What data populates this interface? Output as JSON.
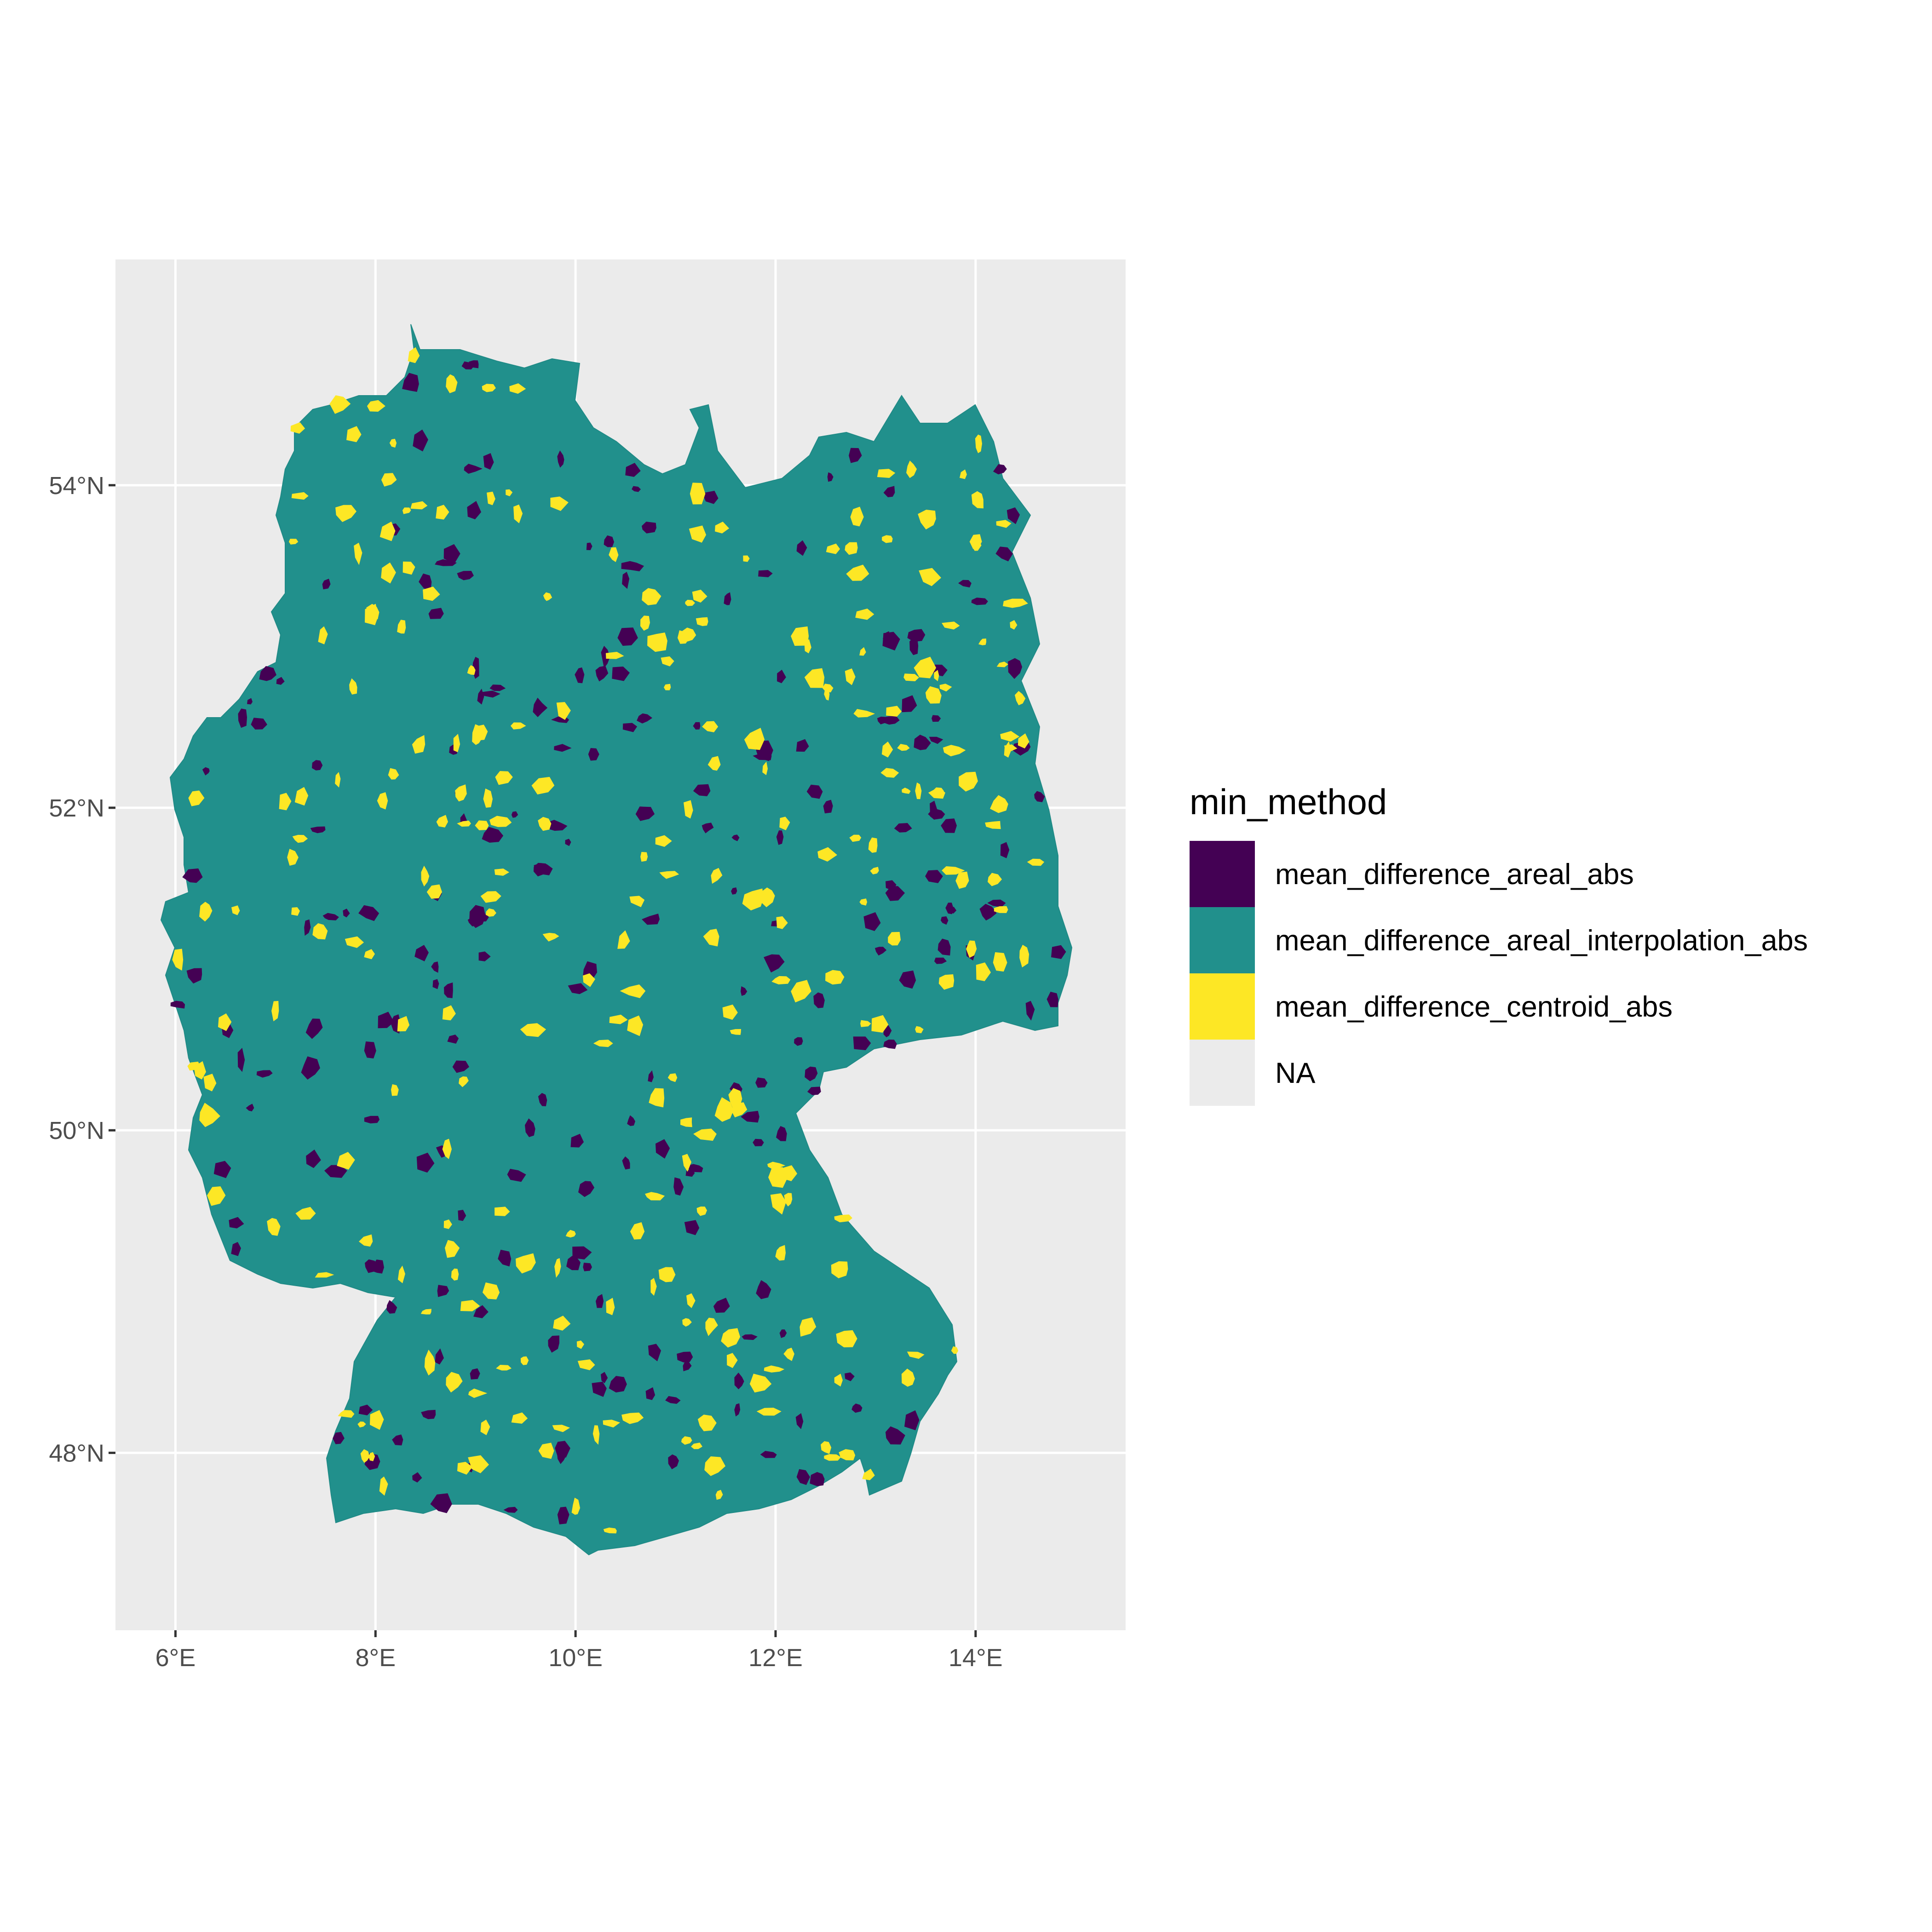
{
  "chart_data": {
    "type": "choropleth",
    "region": "Germany",
    "fill_variable": "min_method",
    "x_ticks": [
      "6°E",
      "8°E",
      "10°E",
      "12°E",
      "14°E"
    ],
    "x_tick_values": [
      6,
      8,
      10,
      12,
      14
    ],
    "y_ticks": [
      "54°N",
      "52°N",
      "50°N",
      "48°N"
    ],
    "y_tick_values": [
      54,
      52,
      50,
      48
    ],
    "xlim": [
      5.4,
      15.5
    ],
    "ylim": [
      46.9,
      55.4
    ],
    "grid": true,
    "legend_position": "right",
    "legend": {
      "title": "min_method",
      "entries": [
        {
          "label": "mean_difference_areal_abs",
          "color": "#440154"
        },
        {
          "label": "mean_difference_areal_interpolation_abs",
          "color": "#21908C"
        },
        {
          "label": "mean_difference_centroid_abs",
          "color": "#FDE725"
        },
        {
          "label": "NA",
          "color": "#EBEBEB"
        }
      ]
    },
    "colors": {
      "panel_background": "#EBEBEB",
      "gridline": "#FFFFFF",
      "dominant_fill": "#21908C"
    }
  }
}
